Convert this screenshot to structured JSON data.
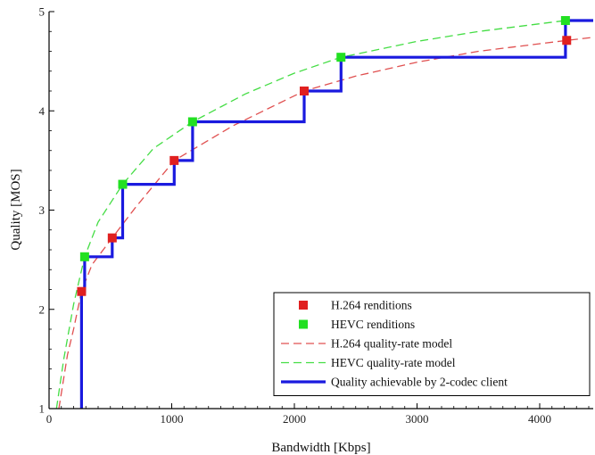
{
  "chart_data": {
    "type": "line",
    "xlabel": "Bandwidth [Kbps]",
    "ylabel": "Quality [MOS]",
    "xlim": [
      0,
      4500
    ],
    "ylim": [
      1,
      5
    ],
    "x_ticks": [
      0,
      1000,
      2000,
      3000,
      4000
    ],
    "y_ticks": [
      1,
      2,
      3,
      4,
      5
    ],
    "grid": false,
    "legend_position": "bottom-right",
    "series": [
      {
        "name": "H.264 renditions",
        "kind": "scatter",
        "color": "#e02020",
        "points": [
          [
            265,
            2.18
          ],
          [
            515,
            2.72
          ],
          [
            1020,
            3.5
          ],
          [
            2080,
            4.2
          ],
          [
            4220,
            4.71
          ]
        ]
      },
      {
        "name": "HEVC renditions",
        "kind": "scatter",
        "color": "#22e022",
        "points": [
          [
            290,
            2.53
          ],
          [
            600,
            3.26
          ],
          [
            1170,
            3.89
          ],
          [
            2380,
            4.54
          ],
          [
            4210,
            4.91
          ]
        ]
      },
      {
        "name": "H.264 quality-rate model",
        "kind": "dashed-line",
        "color": "#e05050",
        "points": [
          [
            80,
            1.0
          ],
          [
            150,
            1.54
          ],
          [
            200,
            1.8
          ],
          [
            265,
            2.18
          ],
          [
            350,
            2.45
          ],
          [
            515,
            2.72
          ],
          [
            700,
            3.02
          ],
          [
            1020,
            3.5
          ],
          [
            1500,
            3.85
          ],
          [
            2080,
            4.2
          ],
          [
            2500,
            4.35
          ],
          [
            3000,
            4.49
          ],
          [
            3500,
            4.6
          ],
          [
            4220,
            4.71
          ],
          [
            4500,
            4.75
          ]
        ]
      },
      {
        "name": "HEVC quality-rate model",
        "kind": "dashed-line",
        "color": "#44dd44",
        "points": [
          [
            60,
            1.0
          ],
          [
            120,
            1.5
          ],
          [
            200,
            2.05
          ],
          [
            290,
            2.53
          ],
          [
            400,
            2.88
          ],
          [
            600,
            3.26
          ],
          [
            850,
            3.62
          ],
          [
            1170,
            3.89
          ],
          [
            1600,
            4.17
          ],
          [
            2000,
            4.38
          ],
          [
            2380,
            4.54
          ],
          [
            3000,
            4.7
          ],
          [
            3500,
            4.8
          ],
          [
            4210,
            4.91
          ],
          [
            4500,
            4.92
          ]
        ]
      },
      {
        "name": "Quality achievable by 2-codec client",
        "kind": "step-line",
        "color": "#1a1adf",
        "points": [
          [
            265,
            1.0
          ],
          [
            265,
            2.18
          ],
          [
            290,
            2.18
          ],
          [
            290,
            2.53
          ],
          [
            515,
            2.53
          ],
          [
            515,
            2.72
          ],
          [
            600,
            2.72
          ],
          [
            600,
            3.26
          ],
          [
            1020,
            3.26
          ],
          [
            1020,
            3.5
          ],
          [
            1170,
            3.5
          ],
          [
            1170,
            3.89
          ],
          [
            2080,
            3.89
          ],
          [
            2080,
            4.2
          ],
          [
            2380,
            4.2
          ],
          [
            2380,
            4.54
          ],
          [
            4210,
            4.54
          ],
          [
            4210,
            4.91
          ],
          [
            4500,
            4.91
          ]
        ]
      }
    ]
  }
}
